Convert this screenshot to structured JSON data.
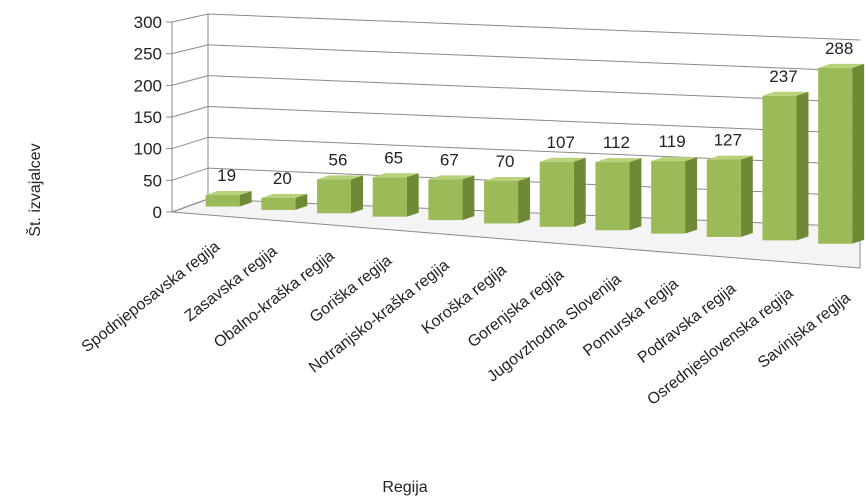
{
  "chart_data": {
    "type": "bar",
    "subtype": "3d-column",
    "title": "",
    "xlabel": "Regija",
    "ylabel": "Št. izvajalcev",
    "ylim": [
      0,
      300
    ],
    "yticks": [
      "0",
      "50",
      "100",
      "150",
      "200",
      "250",
      "300"
    ],
    "grid": true,
    "legend": "none",
    "bar_color": "#9BBB59",
    "categories": [
      "Spodnjeposavska regija",
      "Zasavska regija",
      "Obalno-kraška regija",
      "Goriška regija",
      "Notranjsko-kraška regija",
      "Koroška regija",
      "Gorenjska regija",
      "Jugovzhodna Slovenija",
      "Pomurska regija",
      "Podravska regija",
      "Osrednjeslovenska regija",
      "Savinjska regija"
    ],
    "values": [
      19,
      20,
      56,
      65,
      67,
      70,
      107,
      112,
      119,
      127,
      237,
      288
    ],
    "data_labels": [
      "19",
      "20",
      "56",
      "65",
      "67",
      "70",
      "107",
      "112",
      "119",
      "127",
      "237",
      "288"
    ]
  }
}
